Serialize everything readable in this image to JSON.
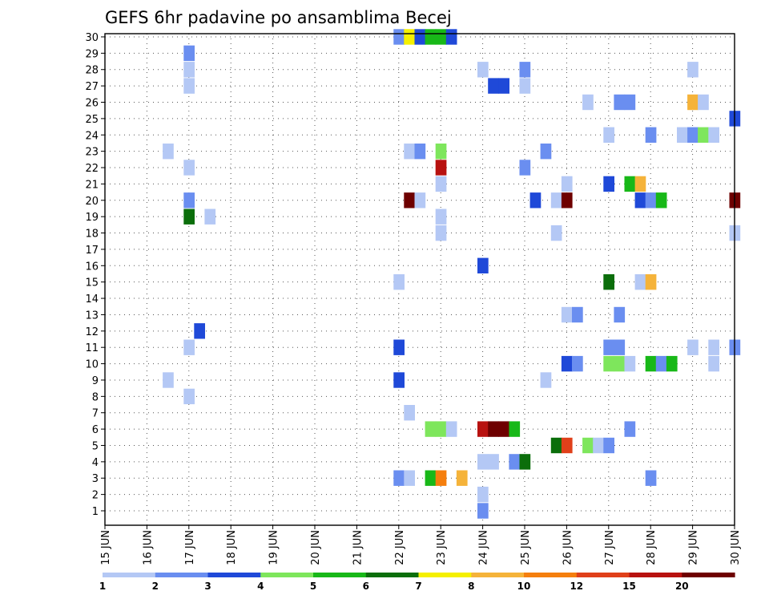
{
  "chart_data": {
    "type": "heatmap",
    "title": "GEFS 6hr padavine po ansamblima Becej",
    "y_ticks": [
      "1",
      "2",
      "3",
      "4",
      "5",
      "6",
      "7",
      "8",
      "9",
      "10",
      "11",
      "12",
      "13",
      "14",
      "15",
      "16",
      "17",
      "18",
      "19",
      "20",
      "21",
      "22",
      "23",
      "24",
      "25",
      "26",
      "27",
      "28",
      "29",
      "30"
    ],
    "x_ticks": [
      "15 JUN",
      "16 JUN",
      "17 JUN",
      "18 JUN",
      "19 JUN",
      "20 JUN",
      "21 JUN",
      "22 JUN",
      "23 JUN",
      "24 JUN",
      "25 JUN",
      "26 JUN",
      "27 JUN",
      "28 JUN",
      "29 JUN",
      "30 JUN"
    ],
    "colorbar": {
      "labels": [
        "1",
        "2",
        "3",
        "4",
        "5",
        "6",
        "7",
        "8",
        "10",
        "12",
        "15",
        "20"
      ],
      "colors": [
        "#b4c8f5",
        "#6a8ef0",
        "#1f49d8",
        "#7ee65c",
        "#18b818",
        "#0b6e0b",
        "#f5f000",
        "#f5b33a",
        "#f57f0e",
        "#e0401a",
        "#b81210",
        "#6e0000"
      ]
    },
    "cells": [
      [
        22.0,
        30,
        2
      ],
      [
        22.25,
        30,
        7
      ],
      [
        22.5,
        30,
        3
      ],
      [
        22.75,
        30,
        5
      ],
      [
        23.0,
        30,
        5
      ],
      [
        23.25,
        30,
        3
      ],
      [
        17.0,
        29,
        2
      ],
      [
        17.0,
        28,
        1
      ],
      [
        24.0,
        28,
        1
      ],
      [
        25.0,
        28,
        2
      ],
      [
        29.0,
        28,
        1
      ],
      [
        17.0,
        27,
        1
      ],
      [
        24.25,
        27,
        3
      ],
      [
        24.5,
        27,
        3
      ],
      [
        25.0,
        27,
        1
      ],
      [
        26.5,
        26,
        1
      ],
      [
        27.25,
        26,
        2
      ],
      [
        27.5,
        26,
        2
      ],
      [
        29.0,
        26,
        8
      ],
      [
        29.25,
        26,
        1
      ],
      [
        30.0,
        25,
        3
      ],
      [
        27.0,
        24,
        1
      ],
      [
        28.0,
        24,
        2
      ],
      [
        28.75,
        24,
        1
      ],
      [
        29.0,
        24,
        2
      ],
      [
        29.25,
        24,
        4
      ],
      [
        29.5,
        24,
        1
      ],
      [
        16.5,
        23,
        1
      ],
      [
        22.25,
        23,
        1
      ],
      [
        22.5,
        23,
        2
      ],
      [
        23.0,
        23,
        4
      ],
      [
        25.5,
        23,
        2
      ],
      [
        17.0,
        22,
        1
      ],
      [
        23.0,
        22,
        11
      ],
      [
        25.0,
        22,
        2
      ],
      [
        23.0,
        21,
        1
      ],
      [
        26.0,
        21,
        1
      ],
      [
        27.0,
        21,
        3
      ],
      [
        27.5,
        21,
        5
      ],
      [
        27.75,
        21,
        8
      ],
      [
        17.0,
        20,
        2
      ],
      [
        22.25,
        20,
        12
      ],
      [
        22.5,
        20,
        1
      ],
      [
        25.25,
        20,
        3
      ],
      [
        25.75,
        20,
        1
      ],
      [
        26.0,
        20,
        12
      ],
      [
        27.75,
        20,
        3
      ],
      [
        28.0,
        20,
        2
      ],
      [
        28.25,
        20,
        5
      ],
      [
        30.0,
        20,
        12
      ],
      [
        17.0,
        19,
        6
      ],
      [
        17.5,
        19,
        1
      ],
      [
        23.0,
        19,
        1
      ],
      [
        23.0,
        18,
        1
      ],
      [
        25.75,
        18,
        1
      ],
      [
        30.0,
        18,
        1
      ],
      [
        24.0,
        16,
        3
      ],
      [
        22.0,
        15,
        1
      ],
      [
        27.0,
        15,
        6
      ],
      [
        27.75,
        15,
        1
      ],
      [
        28.0,
        15,
        8
      ],
      [
        26.0,
        13,
        1
      ],
      [
        26.25,
        13,
        2
      ],
      [
        27.25,
        13,
        2
      ],
      [
        17.25,
        12,
        3
      ],
      [
        17.0,
        11,
        1
      ],
      [
        22.0,
        11,
        3
      ],
      [
        27.0,
        11,
        2
      ],
      [
        27.25,
        11,
        2
      ],
      [
        29.0,
        11,
        1
      ],
      [
        29.5,
        11,
        1
      ],
      [
        30.0,
        11,
        2
      ],
      [
        26.0,
        10,
        3
      ],
      [
        26.25,
        10,
        2
      ],
      [
        27.0,
        10,
        4
      ],
      [
        27.25,
        10,
        4
      ],
      [
        27.5,
        10,
        1
      ],
      [
        28.0,
        10,
        5
      ],
      [
        28.25,
        10,
        2
      ],
      [
        28.5,
        10,
        5
      ],
      [
        29.5,
        10,
        1
      ],
      [
        16.5,
        9,
        1
      ],
      [
        22.0,
        9,
        3
      ],
      [
        25.5,
        9,
        1
      ],
      [
        17.0,
        8,
        1
      ],
      [
        22.25,
        7,
        1
      ],
      [
        22.75,
        6,
        4
      ],
      [
        23.0,
        6,
        4
      ],
      [
        23.25,
        6,
        1
      ],
      [
        24.0,
        6,
        11
      ],
      [
        24.25,
        6,
        12
      ],
      [
        24.5,
        6,
        12
      ],
      [
        24.75,
        6,
        5
      ],
      [
        27.5,
        6,
        2
      ],
      [
        25.75,
        5,
        6
      ],
      [
        26.0,
        5,
        10
      ],
      [
        26.5,
        5,
        4
      ],
      [
        26.75,
        5,
        1
      ],
      [
        27.0,
        5,
        2
      ],
      [
        24.0,
        4,
        1
      ],
      [
        24.25,
        4,
        1
      ],
      [
        24.75,
        4,
        2
      ],
      [
        25.0,
        4,
        6
      ],
      [
        22.0,
        3,
        2
      ],
      [
        22.25,
        3,
        1
      ],
      [
        22.75,
        3,
        5
      ],
      [
        23.0,
        3,
        9
      ],
      [
        23.5,
        3,
        8
      ],
      [
        28.0,
        3,
        2
      ],
      [
        24.0,
        2,
        1
      ],
      [
        24.0,
        1,
        2
      ]
    ]
  }
}
